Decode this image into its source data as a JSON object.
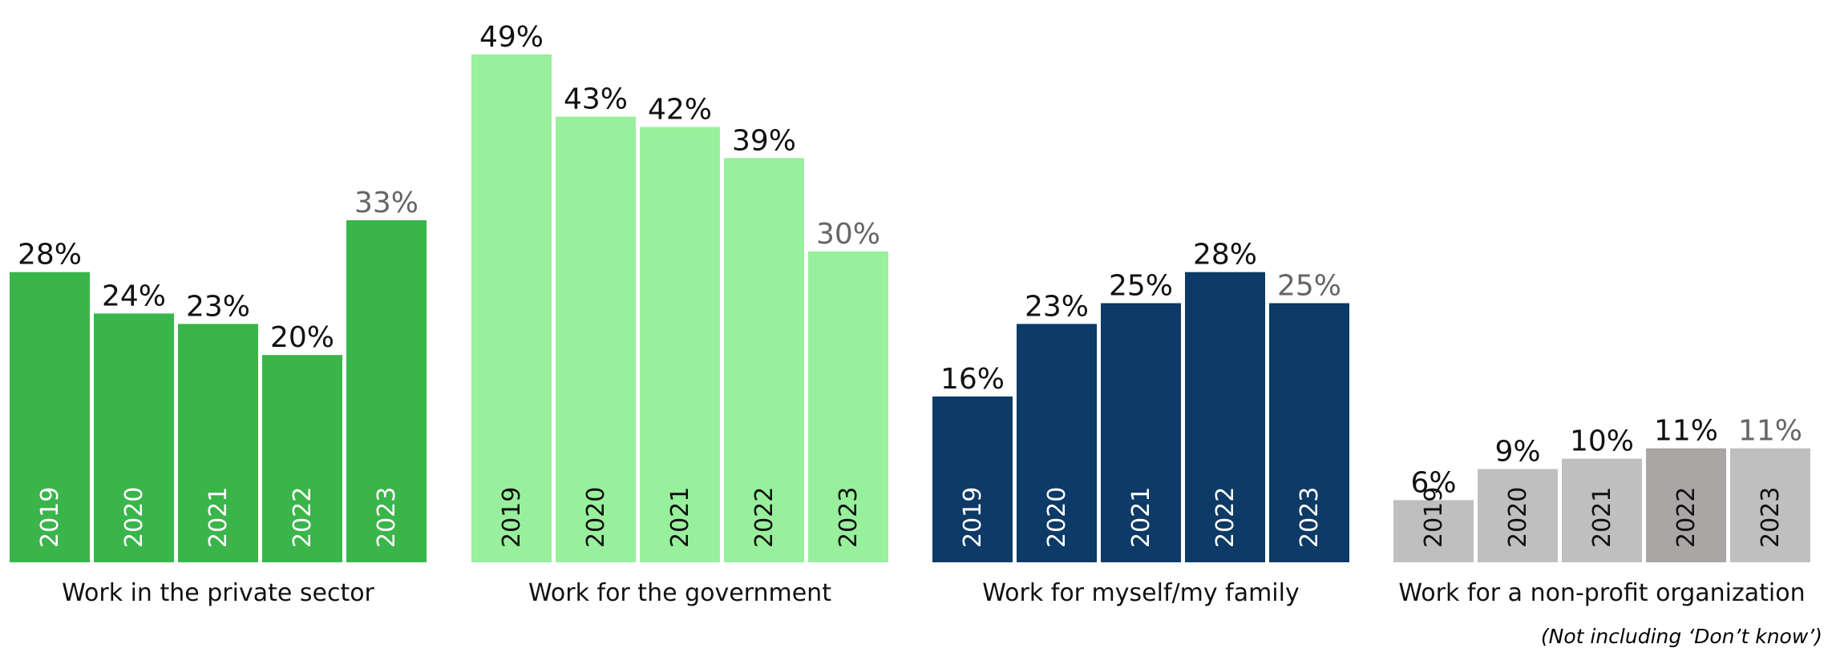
{
  "chart_data": {
    "type": "bar",
    "categories": [
      "2019",
      "2020",
      "2021",
      "2022",
      "2023"
    ],
    "groups": [
      {
        "label": "Work in the private sector",
        "values": [
          28,
          24,
          23,
          20,
          33
        ],
        "value_labels": [
          "28%",
          "24%",
          "23%",
          "20%",
          "33%"
        ],
        "colors": [
          "#3ab54a",
          "#3ab54a",
          "#3ab54a",
          "#3ab54a",
          "#3ab54a"
        ],
        "year_label_color": "#ffffff"
      },
      {
        "label": "Work for the government",
        "values": [
          49,
          43,
          42,
          39,
          30
        ],
        "value_labels": [
          "49%",
          "43%",
          "42%",
          "39%",
          "30%"
        ],
        "colors": [
          "#98f09c",
          "#98f09c",
          "#98f09c",
          "#98f09c",
          "#98f09c"
        ],
        "year_label_color": "#111111"
      },
      {
        "label": "Work for myself/my family",
        "values": [
          16,
          23,
          25,
          28,
          25
        ],
        "value_labels": [
          "16%",
          "23%",
          "25%",
          "28%",
          "25%"
        ],
        "colors": [
          "#0d3a66",
          "#0d3a66",
          "#0d3a66",
          "#0d3a66",
          "#0d3a66"
        ],
        "year_label_color": "#ffffff"
      },
      {
        "label": "Work for a non-profit organization",
        "values": [
          6,
          9,
          10,
          11,
          11
        ],
        "value_labels": [
          "6%",
          "9%",
          "10%",
          "11%",
          "11%"
        ],
        "colors": [
          "#bfbfbf",
          "#bfbfbf",
          "#bfbfbf",
          "#aaa6a6",
          "#bfbfbf"
        ],
        "year_label_color": "#111111"
      }
    ],
    "value_label_colors": [
      "#111111",
      "#111111",
      "#111111",
      "#111111",
      "#666666"
    ],
    "ylim": [
      0,
      49
    ],
    "grid": false,
    "legend": "none",
    "footnote": "(Not including ‘Don’t know’)"
  }
}
